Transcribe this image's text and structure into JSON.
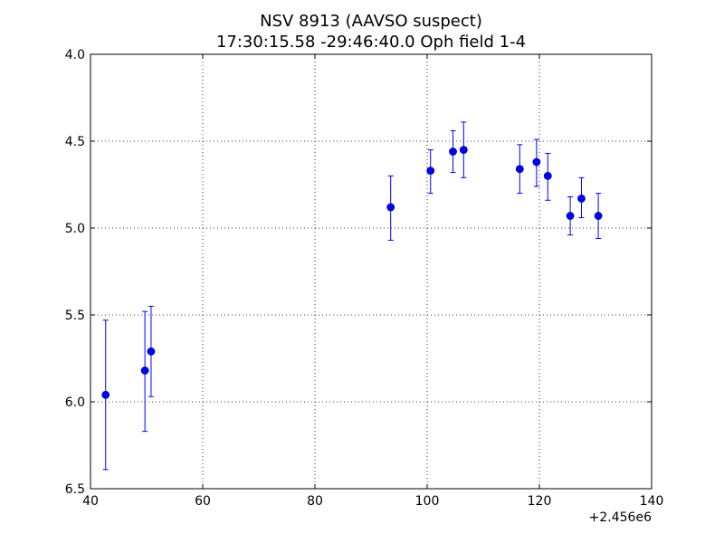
{
  "chart_data": {
    "type": "scatter",
    "title_line1": "NSV 8913  (AAVSO suspect)",
    "title_line2": "17:30:15.58 -29:46:40.0 Oph field 1-4",
    "xlabel": "",
    "ylabel": "",
    "x_offset_label": "+2.456e6",
    "xlim": [
      40,
      140
    ],
    "ylim": [
      4.0,
      6.5
    ],
    "y_inverted": true,
    "grid": true,
    "x_ticks": [
      40,
      60,
      80,
      100,
      120,
      140
    ],
    "x_tick_labels": [
      "40",
      "60",
      "80",
      "100",
      "120",
      "140"
    ],
    "y_ticks": [
      4.0,
      4.5,
      5.0,
      5.5,
      6.0,
      6.5
    ],
    "y_tick_labels": [
      "4.0",
      "4.5",
      "5.0",
      "5.5",
      "6.0",
      "6.5"
    ],
    "marker_color": "#0000ff",
    "errorbar_color": "#0000ff",
    "points": [
      {
        "x": 42.7,
        "y": 5.96,
        "yerr_low": 5.53,
        "yerr_high": 6.39
      },
      {
        "x": 49.7,
        "y": 5.82,
        "yerr_low": 5.48,
        "yerr_high": 6.17
      },
      {
        "x": 50.8,
        "y": 5.71,
        "yerr_low": 5.45,
        "yerr_high": 5.97
      },
      {
        "x": 93.5,
        "y": 4.88,
        "yerr_low": 4.7,
        "yerr_high": 5.07
      },
      {
        "x": 100.6,
        "y": 4.67,
        "yerr_low": 4.55,
        "yerr_high": 4.8
      },
      {
        "x": 104.6,
        "y": 4.56,
        "yerr_low": 4.44,
        "yerr_high": 4.68
      },
      {
        "x": 106.5,
        "y": 4.55,
        "yerr_low": 4.39,
        "yerr_high": 4.71
      },
      {
        "x": 116.5,
        "y": 4.66,
        "yerr_low": 4.52,
        "yerr_high": 4.8
      },
      {
        "x": 119.5,
        "y": 4.62,
        "yerr_low": 4.49,
        "yerr_high": 4.76
      },
      {
        "x": 121.5,
        "y": 4.7,
        "yerr_low": 4.57,
        "yerr_high": 4.84
      },
      {
        "x": 125.5,
        "y": 4.93,
        "yerr_low": 4.82,
        "yerr_high": 5.04
      },
      {
        "x": 127.5,
        "y": 4.83,
        "yerr_low": 4.71,
        "yerr_high": 4.94
      },
      {
        "x": 130.5,
        "y": 4.93,
        "yerr_low": 4.8,
        "yerr_high": 5.06
      }
    ]
  }
}
